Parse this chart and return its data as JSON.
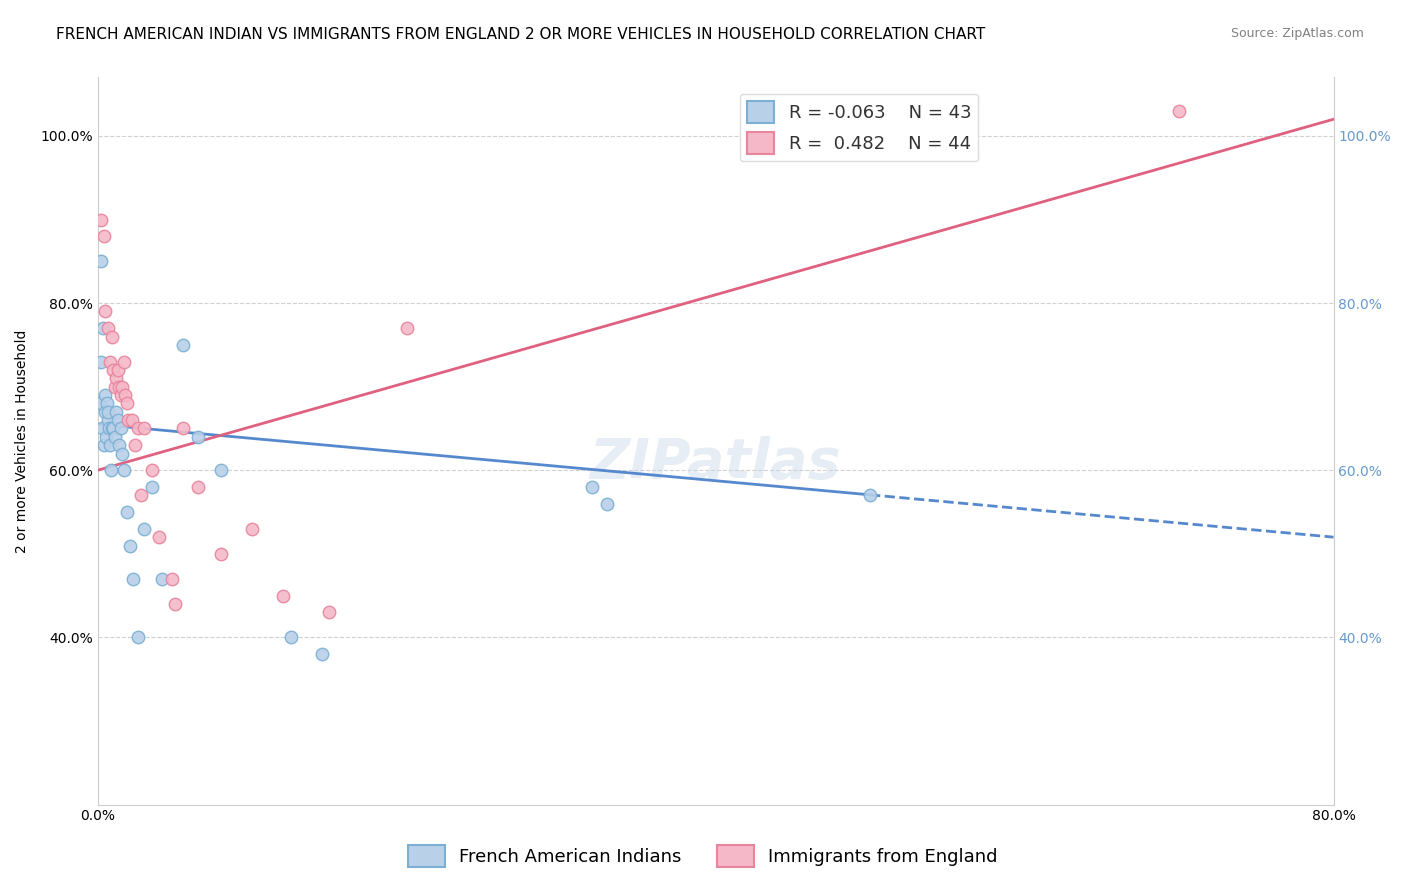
{
  "title": "FRENCH AMERICAN INDIAN VS IMMIGRANTS FROM ENGLAND 2 OR MORE VEHICLES IN HOUSEHOLD CORRELATION CHART",
  "source": "Source: ZipAtlas.com",
  "ylabel": "2 or more Vehicles in Household",
  "xmin": 0.0,
  "xmax": 80.0,
  "ymin": 20.0,
  "ymax": 107.0,
  "yticks": [
    40.0,
    60.0,
    80.0,
    100.0
  ],
  "xticks": [
    0.0,
    16.0,
    32.0,
    48.0,
    64.0,
    80.0
  ],
  "blue_R": -0.063,
  "blue_N": 43,
  "pink_R": 0.482,
  "pink_N": 44,
  "blue_label": "French American Indians",
  "pink_label": "Immigrants from England",
  "blue_color": "#b8d0e8",
  "blue_edge": "#7bafd4",
  "pink_color": "#f5b8c8",
  "pink_edge": "#e8849c",
  "blue_line_color": "#5588cc",
  "pink_line_color": "#e06080",
  "watermark_text": "ZIPatlas",
  "background_color": "#ffffff",
  "grid_color": "#cccccc",
  "blue_x": [
    0.15,
    0.2,
    0.25,
    0.3,
    0.35,
    0.4,
    0.45,
    0.5,
    0.55,
    0.6,
    0.65,
    0.7,
    0.75,
    0.8,
    0.85,
    0.9,
    1.0,
    1.1,
    1.2,
    1.3,
    1.4,
    1.5,
    1.6,
    1.7,
    1.9,
    2.1,
    2.3,
    2.6,
    3.0,
    3.5,
    4.2,
    5.5,
    6.5,
    8.0,
    12.5,
    14.5,
    32.0,
    33.0,
    50.0
  ],
  "blue_y": [
    68,
    73,
    85,
    65,
    77,
    63,
    69,
    67,
    64,
    68,
    66,
    67,
    65,
    63,
    60,
    65,
    65,
    64,
    67,
    66,
    63,
    65,
    62,
    60,
    55,
    51,
    47,
    40,
    53,
    58,
    47,
    75,
    64,
    60,
    40,
    38,
    58,
    56,
    57
  ],
  "pink_x": [
    0.2,
    0.4,
    0.5,
    0.7,
    0.8,
    0.9,
    1.0,
    1.1,
    1.2,
    1.3,
    1.4,
    1.5,
    1.6,
    1.7,
    1.8,
    1.9,
    2.0,
    2.2,
    2.4,
    2.6,
    2.8,
    3.0,
    3.5,
    4.0,
    4.8,
    5.0,
    5.5,
    6.5,
    8.0,
    10.0,
    12.0,
    15.0,
    20.0,
    70.0
  ],
  "pink_y": [
    90,
    88,
    79,
    77,
    73,
    76,
    72,
    70,
    71,
    72,
    70,
    69,
    70,
    73,
    69,
    68,
    66,
    66,
    63,
    65,
    57,
    65,
    60,
    52,
    47,
    44,
    65,
    58,
    50,
    53,
    45,
    43,
    77,
    103
  ],
  "blue_trend_x0": 0.0,
  "blue_trend_y0": 65.5,
  "blue_trend_x1": 80.0,
  "blue_trend_y1": 52.0,
  "blue_solid_end_x": 50.0,
  "pink_trend_x0": 0.0,
  "pink_trend_y0": 60.0,
  "pink_trend_x1": 80.0,
  "pink_trend_y1": 102.0,
  "title_fontsize": 11,
  "axis_label_fontsize": 10,
  "tick_fontsize": 10,
  "legend_fontsize": 13,
  "source_fontsize": 9,
  "watermark_fontsize": 40,
  "watermark_color": "#c8d8e8",
  "watermark_alpha": 0.45,
  "right_yaxis_color": "#6699cc",
  "marker_size": 9
}
